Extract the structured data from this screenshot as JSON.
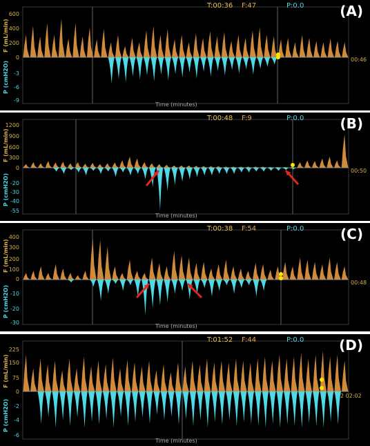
{
  "chart_data": [
    {
      "type": "area",
      "panel_label": "(A)",
      "header": {
        "t": "T:00:36",
        "f": "F:47",
        "p": "P:0.0"
      },
      "flow_axis_label": "F (mL/min)",
      "pressure_axis_label": "P (cmH2O)",
      "xlabel": "Time (minutes)",
      "flow_ticks": [
        "600",
        "400",
        "200",
        "0"
      ],
      "pressure_ticks": [
        "-3",
        "-6",
        "-9"
      ],
      "flow_max": 600,
      "pressure_min": -9,
      "clock": "00:46",
      "series": [
        {
          "name": "F",
          "peaks": [
            300,
            420,
            280,
            460,
            300,
            520,
            250,
            460,
            280,
            400,
            240,
            380,
            200,
            300,
            150,
            260,
            200,
            360,
            420,
            300,
            380,
            240,
            300,
            200,
            320,
            260,
            350,
            280,
            340,
            220,
            300,
            260,
            360,
            400,
            300,
            280,
            240,
            260,
            200,
            300,
            260,
            220,
            200,
            250,
            220,
            200
          ]
        },
        {
          "name": "P",
          "troughs": [
            0,
            0,
            0,
            0,
            0,
            0,
            0,
            0,
            0,
            0,
            0,
            0,
            -5.5,
            -4.5,
            -5.2,
            -4.0,
            -4.6,
            -3.8,
            -5.0,
            -3.6,
            -4.8,
            -3.5,
            -4.2,
            -3.2,
            -4.4,
            -3.0,
            -4.0,
            -2.8,
            -3.8,
            -2.6,
            -3.4,
            -2.5,
            -3.6,
            -2.4,
            -2.0,
            -1.5,
            0,
            0,
            0,
            0,
            0,
            0,
            0,
            0,
            0,
            0
          ]
        }
      ]
    },
    {
      "type": "area",
      "panel_label": "(B)",
      "header": {
        "t": "T:00:48",
        "f": "F:9",
        "p": "P:0.0"
      },
      "flow_axis_label": "F (mL/min)",
      "pressure_axis_label": "P (cmH2O)",
      "xlabel": "Time (minutes)",
      "flow_ticks": [
        "1200",
        "900",
        "600",
        "300",
        "0"
      ],
      "pressure_ticks": [
        "-20",
        "-30",
        "-40",
        "-55"
      ],
      "flow_max": 1200,
      "pressure_min": -55,
      "clock": "00:50",
      "series": [
        {
          "name": "F",
          "peaks": [
            100,
            150,
            120,
            180,
            140,
            160,
            120,
            150,
            110,
            130,
            100,
            120,
            140,
            200,
            300,
            250,
            150,
            120,
            100,
            80,
            60,
            60,
            60,
            50,
            40,
            40,
            40,
            30,
            30,
            30,
            30,
            30,
            30,
            20,
            20,
            20,
            20,
            150,
            200,
            180,
            250,
            300,
            200,
            900
          ]
        },
        {
          "name": "P",
          "troughs": [
            0,
            0,
            0,
            0,
            -5,
            -8,
            -3,
            -6,
            -10,
            -4,
            -8,
            -5,
            -12,
            -6,
            -10,
            -8,
            -15,
            -25,
            -55,
            -30,
            -22,
            -18,
            -15,
            -12,
            -10,
            -10,
            -8,
            -8,
            -8,
            -6,
            -6,
            -5,
            -5,
            -4,
            -4,
            -3,
            -2,
            0,
            0,
            0,
            0,
            0,
            0,
            0
          ]
        }
      ]
    },
    {
      "type": "area",
      "panel_label": "(C)",
      "header": {
        "t": "T:00:38",
        "f": "F:54",
        "p": "P:0.0"
      },
      "flow_axis_label": "F (mL/min)",
      "pressure_axis_label": "P (cmH2O)",
      "xlabel": "Time (minutes)",
      "flow_ticks": [
        "400",
        "300",
        "200",
        "100",
        "0"
      ],
      "pressure_ticks": [
        "-10",
        "-20",
        "-30"
      ],
      "flow_max": 400,
      "pressure_min": -30,
      "clock": "00:48",
      "series": [
        {
          "name": "F",
          "peaks": [
            60,
            80,
            120,
            60,
            140,
            100,
            60,
            40,
            80,
            380,
            360,
            300,
            120,
            60,
            180,
            80,
            60,
            200,
            150,
            120,
            260,
            220,
            200,
            150,
            160,
            100,
            140,
            180,
            120,
            100,
            80,
            150,
            140,
            90,
            120,
            160,
            120,
            200,
            180,
            160,
            140,
            200,
            160,
            120
          ]
        },
        {
          "name": "P",
          "troughs": [
            0,
            0,
            0,
            0,
            0,
            0,
            -2,
            0,
            0,
            -5,
            -15,
            -10,
            -3,
            -8,
            -4,
            -12,
            -25,
            -20,
            -18,
            -16,
            -10,
            -8,
            -14,
            -10,
            -6,
            -12,
            -8,
            -4,
            -10,
            -6,
            -4,
            -12,
            -8,
            0,
            0,
            0,
            0,
            0,
            0,
            0,
            0,
            0,
            0,
            0
          ]
        }
      ]
    },
    {
      "type": "area",
      "panel_label": "(D)",
      "header": {
        "t": "T:01:52",
        "f": "F:44",
        "p": "P:0.0"
      },
      "flow_axis_label": "F (mL/min)",
      "pressure_axis_label": "P (cmH2O)",
      "xlabel": "Time (minutes)",
      "flow_ticks": [
        "225",
        "150",
        "75",
        "0"
      ],
      "pressure_ticks": [
        "-2",
        "-4",
        "-6"
      ],
      "flow_max": 225,
      "pressure_min": -6,
      "clock": "2 02:02",
      "series": [
        {
          "name": "F",
          "peaks": [
            190,
            120,
            170,
            140,
            160,
            110,
            170,
            120,
            180,
            130,
            160,
            140,
            175,
            120,
            165,
            150,
            130,
            160,
            110,
            140,
            100,
            150,
            130,
            160,
            140,
            170,
            150,
            160,
            150,
            170,
            160,
            150,
            170,
            180,
            160,
            190,
            170,
            180,
            200,
            170,
            190,
            210,
            180,
            190,
            160
          ]
        },
        {
          "name": "P",
          "troughs": [
            0,
            0,
            -4.5,
            -3.5,
            -5,
            -4,
            -4.8,
            -3.6,
            -5,
            -4.2,
            -4.6,
            -3.8,
            -5,
            -3.5,
            -4.8,
            -4.2,
            -3.6,
            -4.5,
            -3.2,
            -4,
            -3.5,
            -4.6,
            -3.8,
            -4.8,
            -4,
            -5,
            -4.2,
            -4.6,
            -4,
            -4.8,
            -4.2,
            -4.5,
            -4.8,
            -5,
            -4.5,
            -5,
            -4.6,
            -4.8,
            -5,
            -4.4,
            -4.8,
            -5,
            -4.2,
            -4.6,
            0
          ]
        }
      ]
    }
  ],
  "colors": {
    "flow": "#d08a3c",
    "pressure": "#4fd8e6",
    "header_time": "#e6c35a",
    "header_f": "#e6a64a",
    "header_p": "#4fd8e6",
    "marker": "#ffe400",
    "arrow": "#e0261f"
  }
}
